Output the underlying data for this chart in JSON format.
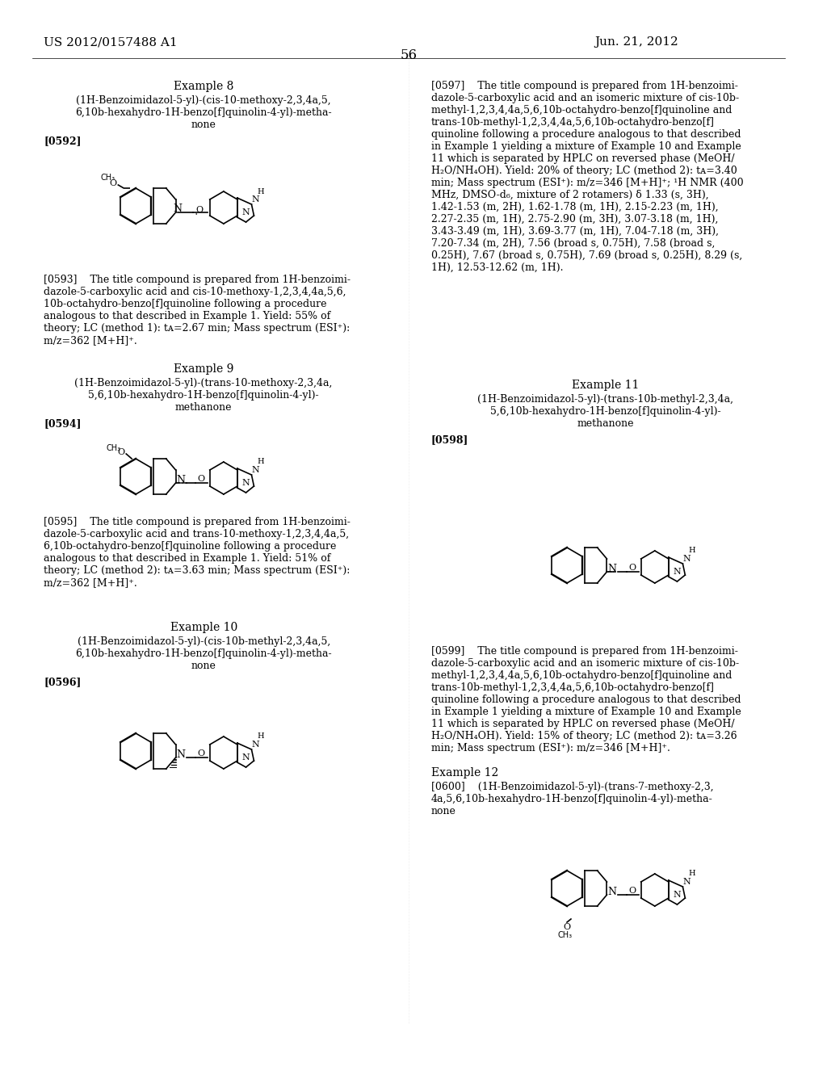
{
  "background_color": "#ffffff",
  "page_number": "56",
  "header_left": "US 2012/0157488 A1",
  "header_right": "Jun. 21, 2012",
  "left_column": {
    "example8_title": "Example 8",
    "example8_compound": "(1H-Benzoimidazol-5-yl)-(cis-10-methoxy-2,3,4a,5,\n6,10b-hexahydro-1H-benzo[f]quinolin-4-yl)-metha-\nnone",
    "example8_ref": "[0592]",
    "example8_desc": "[0593]    The title compound is prepared from 1H-benzoimi-\ndazole-5-carboxylic acid and cis-10-methoxy-1,2,3,4,4a,5,6,\n10b-octahydro-benzo[f]quinoline following a procedure\nanalogous to that described in Example 1. Yield: 55% of\ntheory; LC (method 1): tᴀ=2.67 min; Mass spectrum (ESI⁺):\nm/z=362 [M+H]⁺.",
    "example9_title": "Example 9",
    "example9_compound": "(1H-Benzoimidazol-5-yl)-(trans-10-methoxy-2,3,4a,\n5,6,10b-hexahydro-1H-benzo[f]quinolin-4-yl)-\nmethanone",
    "example9_ref": "[0594]",
    "example9_desc": "[0595]    The title compound is prepared from 1H-benzoimi-\ndazole-5-carboxylic acid and trans-10-methoxy-1,2,3,4,4a,5,\n6,10b-octahydro-benzo[f]quinoline following a procedure\nanalogous to that described in Example 1. Yield: 51% of\ntheory; LC (method 2): tᴀ=3.63 min; Mass spectrum (ESI⁺):\nm/z=362 [M+H]⁺.",
    "example10_title": "Example 10",
    "example10_compound": "(1H-Benzoimidazol-5-yl)-(cis-10b-methyl-2,3,4a,5,\n6,10b-hexahydro-1H-benzo[f]quinolin-4-yl)-metha-\nnone",
    "example10_ref": "[0596]"
  },
  "right_column": {
    "example10_desc": "[0597]    The title compound is prepared from 1H-benzoimi-\ndazole-5-carboxylic acid and an isomeric mixture of cis-10b-\nmethyl-1,2,3,4,4a,5,6,10b-octahydro-benzo[f]quinoline and\ntrans-10b-methyl-1,2,3,4,4a,5,6,10b-octahydro-benzo[f]\nquinoline following a procedure analogous to that described\nin Example 1 yielding a mixture of Example 10 and Example\n11 which is separated by HPLC on reversed phase (MeOH/\nH₂O/NH₄OH). Yield: 20% of theory; LC (method 2): tᴀ=3.40\nmin; Mass spectrum (ESI⁺): m/z=346 [M+H]⁺; ¹H NMR (400\nMHz, DMSO-d₆, mixture of 2 rotamers) δ 1.33 (s, 3H),\n1.42-1.53 (m, 2H), 1.62-1.78 (m, 1H), 2.15-2.23 (m, 1H),\n2.27-2.35 (m, 1H), 2.75-2.90 (m, 3H), 3.07-3.18 (m, 1H),\n3.43-3.49 (m, 1H), 3.69-3.77 (m, 1H), 7.04-7.18 (m, 3H),\n7.20-7.34 (m, 2H), 7.56 (broad s, 0.75H), 7.58 (broad s,\n0.25H), 7.67 (broad s, 0.75H), 7.69 (broad s, 0.25H), 8.29 (s,\n1H), 12.53-12.62 (m, 1H).",
    "example11_title": "Example 11",
    "example11_compound": "(1H-Benzoimidazol-5-yl)-(trans-10b-methyl-2,3,4a,\n5,6,10b-hexahydro-1H-benzo[f]quinolin-4-yl)-\nmethanone",
    "example11_ref": "[0598]",
    "example11_desc": "[0599]    The title compound is prepared from 1H-benzoimi-\ndazole-5-carboxylic acid and an isomeric mixture of cis-10b-\nmethyl-1,2,3,4,4a,5,6,10b-octahydro-benzo[f]quinoline and\ntrans-10b-methyl-1,2,3,4,4a,5,6,10b-octahydro-benzo[f]\nquinoline following a procedure analogous to that described\nin Example 1 yielding a mixture of Example 10 and Example\n11 which is separated by HPLC on reversed phase (MeOH/\nH₂O/NH₄OH). Yield: 15% of theory; LC (method 2): tᴀ=3.26\nmin; Mass spectrum (ESI⁺): m/z=346 [M+H]⁺.",
    "example12_title": "Example 12",
    "example12_compound": "[0600]    (1H-Benzoimidazol-5-yl)-(trans-7-methoxy-2,3,\n4a,5,6,10b-hexahydro-1H-benzo[f]quinolin-4-yl)-metha-\nnone"
  },
  "font_size_header": 11,
  "font_size_title": 10,
  "font_size_body": 9,
  "font_size_compound": 9,
  "font_size_page": 11
}
